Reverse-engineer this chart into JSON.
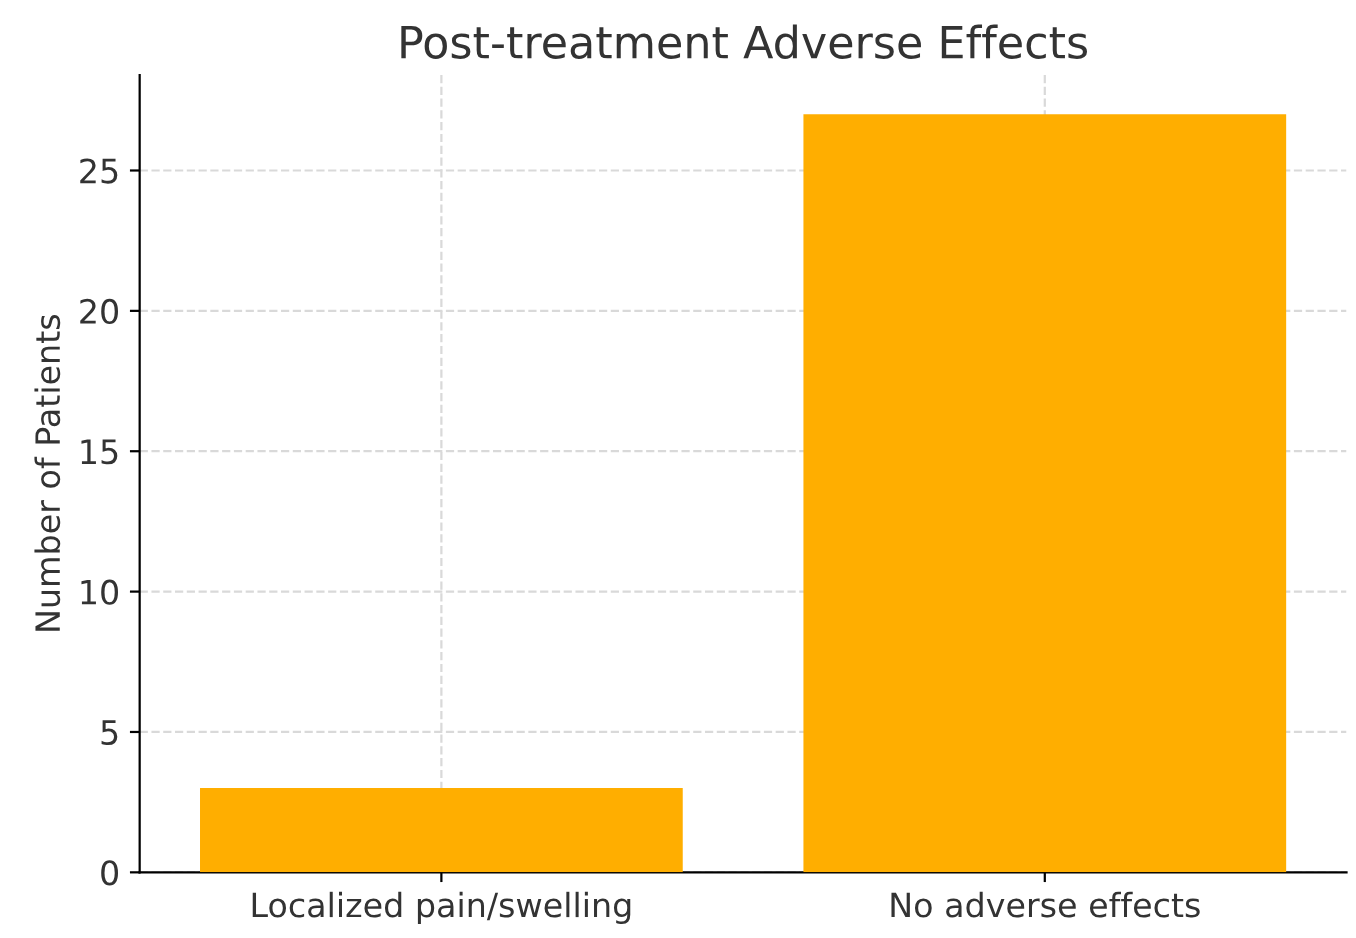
{
  "chart_data": {
    "type": "bar",
    "title": "Post-treatment Adverse Effects",
    "ylabel": "Number of Patients",
    "categories": [
      "Localized pain/swelling",
      "No adverse effects"
    ],
    "values": [
      3,
      27
    ],
    "color": "#ffae00",
    "ylim": [
      0,
      28.4
    ],
    "yticks": [
      0,
      5,
      10,
      15,
      20,
      25
    ],
    "grid": true
  }
}
